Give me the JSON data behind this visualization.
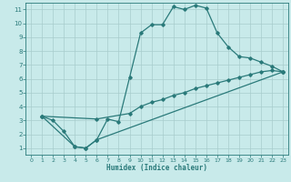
{
  "xlabel": "Humidex (Indice chaleur)",
  "bg_color": "#c8eaea",
  "line_color": "#2a7a7a",
  "grid_color": "#a8cccc",
  "xlim": [
    -0.5,
    23.5
  ],
  "ylim": [
    0.5,
    11.5
  ],
  "xticks": [
    0,
    1,
    2,
    3,
    4,
    5,
    6,
    7,
    8,
    9,
    10,
    11,
    12,
    13,
    14,
    15,
    16,
    17,
    18,
    19,
    20,
    21,
    22,
    23
  ],
  "yticks": [
    1,
    2,
    3,
    4,
    5,
    6,
    7,
    8,
    9,
    10,
    11
  ],
  "line1_x": [
    1,
    2,
    3,
    4,
    5,
    6,
    7,
    8,
    9,
    10,
    11,
    12,
    13,
    14,
    15,
    16,
    17,
    18,
    19,
    20,
    21,
    22,
    23
  ],
  "line1_y": [
    3.3,
    3.0,
    2.2,
    1.1,
    1.0,
    1.6,
    3.1,
    2.9,
    6.1,
    9.3,
    9.9,
    9.9,
    11.2,
    11.0,
    11.3,
    11.1,
    9.3,
    8.3,
    7.6,
    7.5,
    7.2,
    6.9,
    6.5
  ],
  "line2_x": [
    1,
    4,
    5,
    6,
    23
  ],
  "line2_y": [
    3.3,
    1.1,
    1.0,
    1.6,
    6.5
  ],
  "line3_x": [
    1,
    6,
    9,
    10,
    11,
    12,
    13,
    14,
    15,
    16,
    17,
    18,
    19,
    20,
    21,
    22,
    23
  ],
  "line3_y": [
    3.3,
    3.1,
    3.5,
    4.0,
    4.3,
    4.5,
    4.8,
    5.0,
    5.3,
    5.5,
    5.7,
    5.9,
    6.1,
    6.3,
    6.5,
    6.6,
    6.5
  ]
}
